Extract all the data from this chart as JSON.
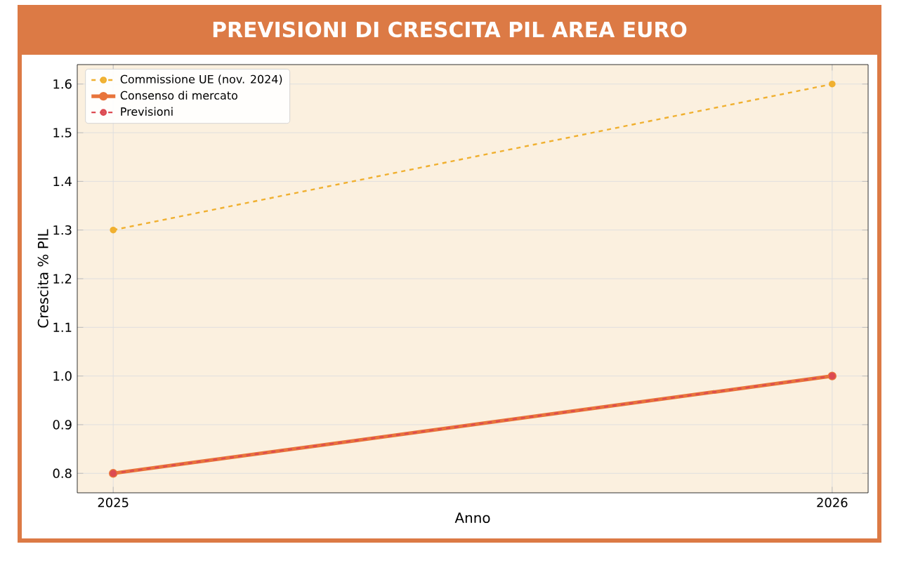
{
  "chart_data": {
    "type": "line",
    "title": "PREVISIONI DI CRESCITA PIL AREA EURO",
    "xlabel": "Anno",
    "ylabel": "Crescita % PIL",
    "x": [
      2025,
      2026
    ],
    "xlim": [
      2024.95,
      2026.05
    ],
    "xticks": [
      2025,
      2026
    ],
    "ylim": [
      0.76,
      1.64
    ],
    "yticks": [
      0.8,
      0.9,
      {
        "value": 1.0,
        "label": "1.0"
      },
      1.1,
      1.2,
      1.3,
      1.4,
      1.5,
      1.6
    ],
    "grid": true,
    "legend": "top left",
    "marker": "circle",
    "series": [
      {
        "name": "Commissione UE (nov. 2024)",
        "color": "#f0b030",
        "values": [
          1.3,
          1.6
        ],
        "line_style": "dashed"
      },
      {
        "name": "Consenso di mercato",
        "color": "#e8743b",
        "values": [
          0.8,
          1.0
        ],
        "line_style": "solid"
      },
      {
        "name": "Previsioni",
        "color": "#dc4a52",
        "values": [
          0.8,
          1.0
        ],
        "line_style": "dashed"
      }
    ]
  }
}
